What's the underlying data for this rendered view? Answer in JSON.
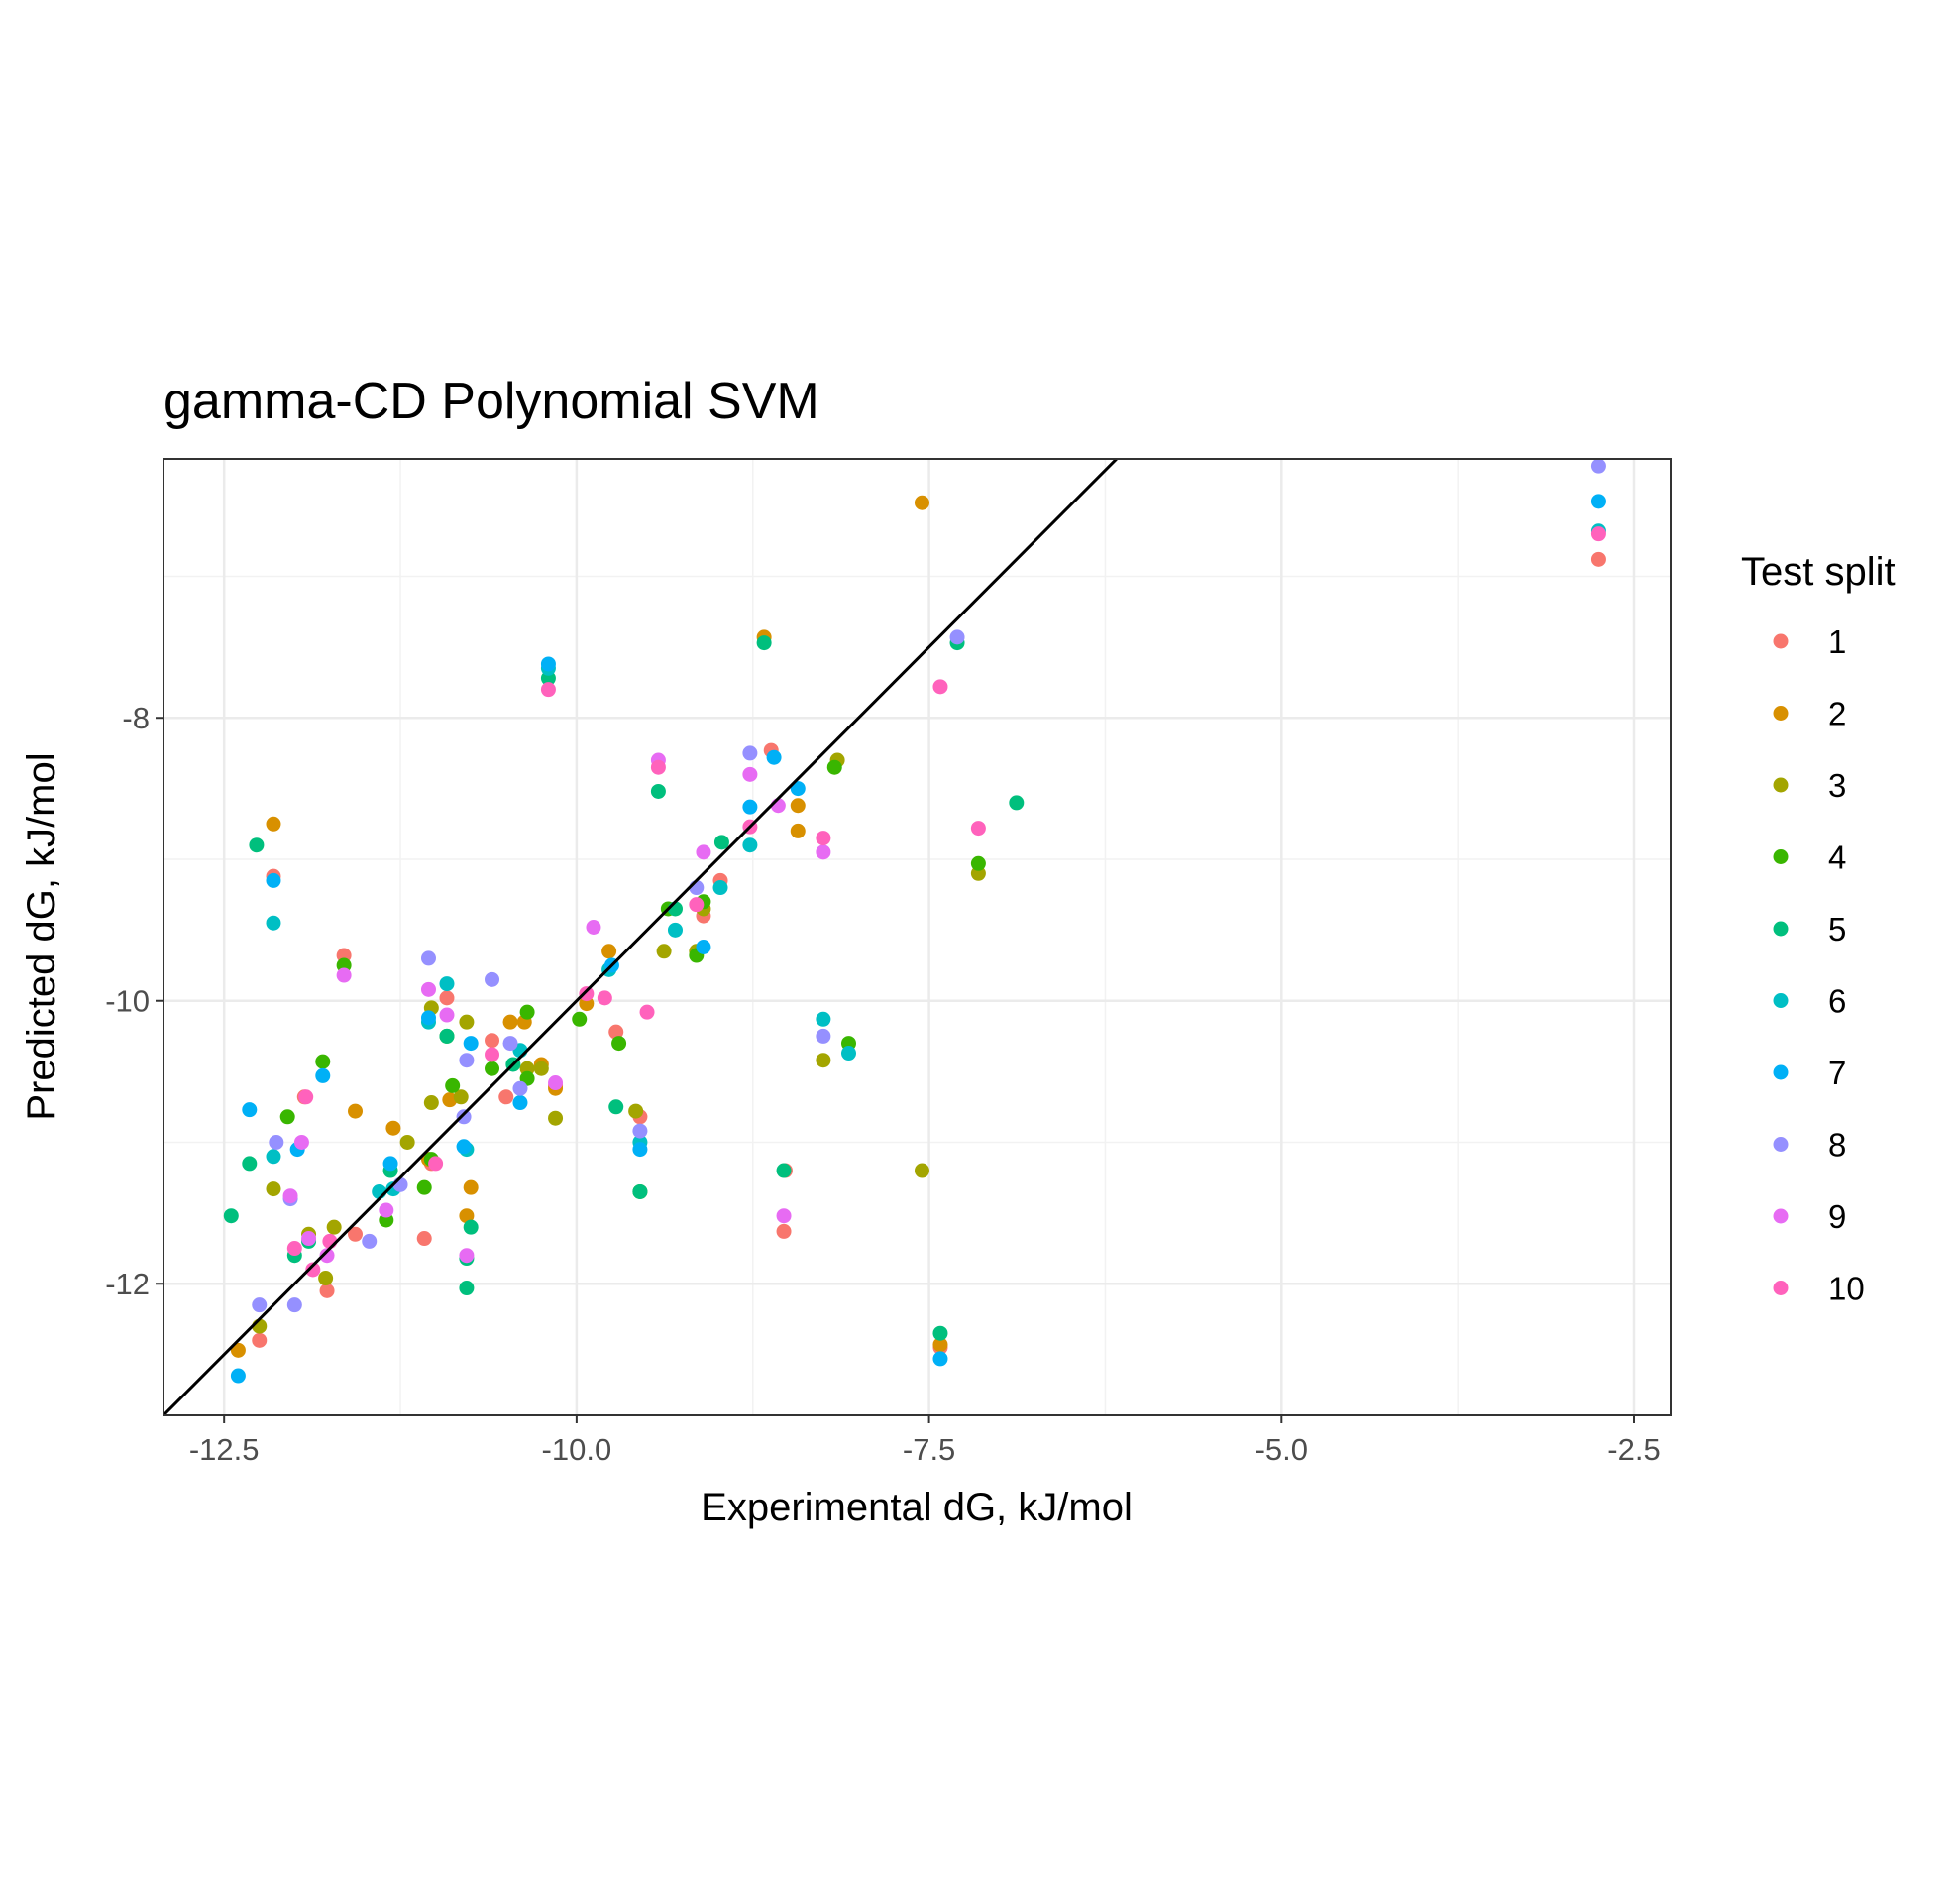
{
  "chart_data": {
    "type": "scatter",
    "title": "gamma-CD Polynomial SVM",
    "xlabel": "Experimental dG, kJ/mol",
    "ylabel": "Predicted dG, kJ/mol",
    "xlim": [
      -12.93,
      -2.24
    ],
    "ylim": [
      -12.93,
      -6.17
    ],
    "x_ticks": [
      -12.5,
      -10.0,
      -7.5,
      -5.0,
      -2.5
    ],
    "x_tick_labels": [
      "-12.5",
      "-10.0",
      "-7.5",
      "-5.0",
      "-2.5"
    ],
    "y_ticks": [
      -12,
      -10,
      -8
    ],
    "y_tick_labels": [
      "-12",
      "-10",
      "-8"
    ],
    "grid": true,
    "reference_line": {
      "slope": 1,
      "intercept": 0,
      "color": "#000000"
    },
    "legend": {
      "title": "Test split",
      "position": "right"
    },
    "series": [
      {
        "name": "1",
        "color": "#F8766D",
        "points": [
          [
            -12.25,
            -12.4
          ],
          [
            -12.15,
            -9.12
          ],
          [
            -11.93,
            -10.68
          ],
          [
            -11.77,
            -12.05
          ],
          [
            -11.65,
            -9.68
          ],
          [
            -11.57,
            -11.65
          ],
          [
            -11.08,
            -11.68
          ],
          [
            -11.03,
            -11.15
          ],
          [
            -10.92,
            -9.98
          ],
          [
            -10.6,
            -10.28
          ],
          [
            -10.5,
            -10.68
          ],
          [
            -10.15,
            -10.6
          ],
          [
            -9.72,
            -10.22
          ],
          [
            -9.55,
            -10.82
          ],
          [
            -9.1,
            -9.4
          ],
          [
            -8.98,
            -9.15
          ],
          [
            -8.62,
            -8.23
          ],
          [
            -8.53,
            -11.63
          ],
          [
            -8.52,
            -11.2
          ],
          [
            -7.42,
            -12.45
          ],
          [
            -2.75,
            -6.88
          ]
        ]
      },
      {
        "name": "2",
        "color": "#D89000",
        "points": [
          [
            -12.4,
            -12.47
          ],
          [
            -12.15,
            -8.75
          ],
          [
            -11.57,
            -10.78
          ],
          [
            -11.3,
            -10.9
          ],
          [
            -11.05,
            -11.12
          ],
          [
            -10.9,
            -10.7
          ],
          [
            -10.78,
            -11.52
          ],
          [
            -10.75,
            -11.32
          ],
          [
            -10.47,
            -10.15
          ],
          [
            -10.37,
            -10.15
          ],
          [
            -10.25,
            -10.45
          ],
          [
            -10.15,
            -10.62
          ],
          [
            -9.93,
            -10.02
          ],
          [
            -9.77,
            -9.65
          ],
          [
            -8.67,
            -7.43
          ],
          [
            -8.43,
            -8.8
          ],
          [
            -8.43,
            -8.62
          ],
          [
            -7.55,
            -6.48
          ],
          [
            -7.42,
            -12.43
          ]
        ]
      },
      {
        "name": "3",
        "color": "#A3A500",
        "points": [
          [
            -12.25,
            -12.3
          ],
          [
            -12.15,
            -11.33
          ],
          [
            -11.9,
            -11.65
          ],
          [
            -11.78,
            -11.96
          ],
          [
            -11.72,
            -11.6
          ],
          [
            -11.2,
            -11.0
          ],
          [
            -11.03,
            -10.72
          ],
          [
            -11.03,
            -10.05
          ],
          [
            -10.82,
            -10.68
          ],
          [
            -10.78,
            -10.15
          ],
          [
            -10.35,
            -10.48
          ],
          [
            -10.25,
            -10.48
          ],
          [
            -10.15,
            -10.83
          ],
          [
            -9.58,
            -10.78
          ],
          [
            -9.38,
            -9.65
          ],
          [
            -9.15,
            -9.65
          ],
          [
            -9.1,
            -9.35
          ],
          [
            -8.25,
            -10.42
          ],
          [
            -8.15,
            -8.3
          ],
          [
            -7.55,
            -11.2
          ],
          [
            -7.15,
            -9.1
          ]
        ]
      },
      {
        "name": "4",
        "color": "#39B600",
        "points": [
          [
            -12.05,
            -10.82
          ],
          [
            -11.8,
            -10.43
          ],
          [
            -11.65,
            -9.75
          ],
          [
            -11.35,
            -11.55
          ],
          [
            -11.08,
            -11.32
          ],
          [
            -11.03,
            -11.12
          ],
          [
            -10.92,
            -10.25
          ],
          [
            -10.88,
            -10.6
          ],
          [
            -10.6,
            -10.48
          ],
          [
            -10.35,
            -10.08
          ],
          [
            -10.35,
            -10.55
          ],
          [
            -9.98,
            -10.13
          ],
          [
            -9.7,
            -10.3
          ],
          [
            -9.55,
            -11.35
          ],
          [
            -9.35,
            -9.35
          ],
          [
            -9.15,
            -9.68
          ],
          [
            -9.1,
            -9.3
          ],
          [
            -8.17,
            -8.35
          ],
          [
            -8.07,
            -10.3
          ],
          [
            -7.15,
            -9.03
          ]
        ]
      },
      {
        "name": "5",
        "color": "#00BF7D",
        "points": [
          [
            -12.45,
            -11.52
          ],
          [
            -12.32,
            -11.15
          ],
          [
            -12.27,
            -8.9
          ],
          [
            -12.0,
            -11.8
          ],
          [
            -11.9,
            -11.7
          ],
          [
            -11.32,
            -11.2
          ],
          [
            -10.92,
            -10.25
          ],
          [
            -10.78,
            -11.82
          ],
          [
            -10.78,
            -12.03
          ],
          [
            -10.75,
            -11.6
          ],
          [
            -10.45,
            -10.45
          ],
          [
            -10.2,
            -7.72
          ],
          [
            -9.72,
            -10.75
          ],
          [
            -9.55,
            -11.35
          ],
          [
            -9.42,
            -8.52
          ],
          [
            -9.3,
            -9.35
          ],
          [
            -8.97,
            -8.88
          ],
          [
            -8.67,
            -7.47
          ],
          [
            -8.53,
            -11.2
          ],
          [
            -7.42,
            -12.35
          ],
          [
            -7.3,
            -7.47
          ],
          [
            -6.88,
            -8.6
          ]
        ]
      },
      {
        "name": "6",
        "color": "#00BFC4",
        "points": [
          [
            -12.15,
            -9.45
          ],
          [
            -12.15,
            -11.1
          ],
          [
            -11.4,
            -11.35
          ],
          [
            -11.3,
            -11.33
          ],
          [
            -11.05,
            -10.15
          ],
          [
            -10.92,
            -9.88
          ],
          [
            -10.78,
            -11.05
          ],
          [
            -10.4,
            -10.35
          ],
          [
            -10.2,
            -7.65
          ],
          [
            -9.77,
            -9.78
          ],
          [
            -9.55,
            -11.0
          ],
          [
            -9.3,
            -9.5
          ],
          [
            -8.98,
            -9.2
          ],
          [
            -8.77,
            -8.9
          ],
          [
            -8.25,
            -10.13
          ],
          [
            -8.07,
            -10.37
          ],
          [
            -2.75,
            -6.68
          ]
        ]
      },
      {
        "name": "7",
        "color": "#00B0F6",
        "points": [
          [
            -12.4,
            -12.65
          ],
          [
            -12.32,
            -10.77
          ],
          [
            -12.15,
            -9.15
          ],
          [
            -11.98,
            -11.05
          ],
          [
            -11.8,
            -10.53
          ],
          [
            -11.32,
            -11.15
          ],
          [
            -11.05,
            -10.12
          ],
          [
            -10.8,
            -11.03
          ],
          [
            -10.75,
            -10.3
          ],
          [
            -10.4,
            -10.72
          ],
          [
            -10.2,
            -7.62
          ],
          [
            -9.75,
            -9.75
          ],
          [
            -9.55,
            -11.05
          ],
          [
            -9.1,
            -9.62
          ],
          [
            -8.77,
            -8.63
          ],
          [
            -8.6,
            -8.28
          ],
          [
            -8.43,
            -8.5
          ],
          [
            -7.42,
            -12.53
          ],
          [
            -2.75,
            -6.47
          ]
        ]
      },
      {
        "name": "8",
        "color": "#9590FF",
        "points": [
          [
            -12.25,
            -12.15
          ],
          [
            -12.13,
            -11.0
          ],
          [
            -12.03,
            -11.4
          ],
          [
            -12.0,
            -12.15
          ],
          [
            -11.47,
            -11.7
          ],
          [
            -11.25,
            -11.3
          ],
          [
            -11.05,
            -9.7
          ],
          [
            -10.8,
            -10.82
          ],
          [
            -10.78,
            -10.42
          ],
          [
            -10.6,
            -9.85
          ],
          [
            -10.47,
            -10.3
          ],
          [
            -10.4,
            -10.62
          ],
          [
            -9.55,
            -10.92
          ],
          [
            -9.15,
            -9.2
          ],
          [
            -8.77,
            -8.25
          ],
          [
            -8.25,
            -10.25
          ],
          [
            -7.3,
            -7.43
          ],
          [
            -2.75,
            -6.22
          ]
        ]
      },
      {
        "name": "9",
        "color": "#E76BF3",
        "points": [
          [
            -12.03,
            -11.38
          ],
          [
            -11.95,
            -11.0
          ],
          [
            -11.9,
            -11.68
          ],
          [
            -11.77,
            -11.8
          ],
          [
            -11.65,
            -9.82
          ],
          [
            -11.35,
            -11.48
          ],
          [
            -11.05,
            -9.92
          ],
          [
            -10.92,
            -10.1
          ],
          [
            -10.78,
            -11.8
          ],
          [
            -10.15,
            -10.58
          ],
          [
            -9.88,
            -9.48
          ],
          [
            -9.42,
            -8.3
          ],
          [
            -9.1,
            -8.95
          ],
          [
            -8.77,
            -8.4
          ],
          [
            -8.57,
            -8.62
          ],
          [
            -8.53,
            -11.52
          ],
          [
            -8.25,
            -8.95
          ]
        ]
      },
      {
        "name": "10",
        "color": "#FF62BC",
        "points": [
          [
            -12.0,
            -11.75
          ],
          [
            -11.92,
            -10.68
          ],
          [
            -11.87,
            -11.9
          ],
          [
            -11.75,
            -11.7
          ],
          [
            -11.0,
            -11.15
          ],
          [
            -10.6,
            -10.38
          ],
          [
            -10.2,
            -7.8
          ],
          [
            -9.93,
            -9.95
          ],
          [
            -9.8,
            -9.98
          ],
          [
            -9.5,
            -10.08
          ],
          [
            -9.42,
            -8.35
          ],
          [
            -9.15,
            -9.32
          ],
          [
            -8.77,
            -8.77
          ],
          [
            -8.25,
            -8.85
          ],
          [
            -7.42,
            -7.78
          ],
          [
            -7.15,
            -8.78
          ],
          [
            -2.75,
            -6.7
          ]
        ]
      }
    ]
  }
}
